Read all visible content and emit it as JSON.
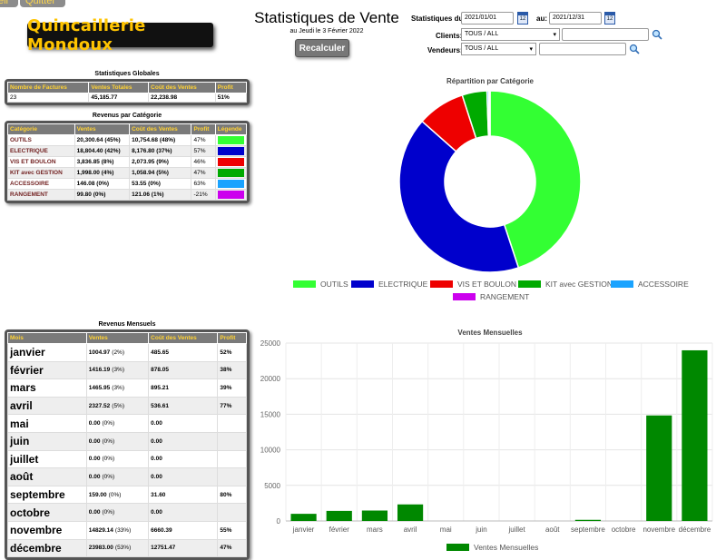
{
  "menu": {
    "tab1": "ell",
    "tab2": "Quitter"
  },
  "logo_text": "Quincaillerie Mondoux",
  "header": {
    "title": "Statistiques de Vente",
    "date_line": "au  Jeudi le 3 Février 2022",
    "recalc_label": "Recalculer"
  },
  "filters": {
    "from_label": "Statistiques du:",
    "from_value": "2021/01/01",
    "to_label": "au:",
    "to_value": "2021/12/31",
    "clients_label": "Clients:",
    "clients_value": "TOUS / ALL",
    "vendeurs_label": "Vendeurs:",
    "vendeurs_value": "TOUS / ALL",
    "cal_glyph": "12"
  },
  "global_stats": {
    "title": "Statistiques Globales",
    "headers": [
      "Nombre de Factures",
      "Ventes Totales",
      "Coût des Ventes",
      "Profit"
    ],
    "row": [
      "23",
      "45,185.77",
      "22,238.98",
      "51%"
    ]
  },
  "category_revenue": {
    "title": "Revenus par Catégorie",
    "headers": [
      "Catégorie",
      "Ventes",
      "Coût des Ventes",
      "Profit",
      "Légende"
    ],
    "rows": [
      {
        "cat": "OUTILS",
        "ventes": "20,300.64 (45%)",
        "cout": "10,754.68 (48%)",
        "profit": "47%",
        "color": "#33ff33"
      },
      {
        "cat": "ELECTRIQUE",
        "ventes": "18,804.40 (42%)",
        "cout": "8,176.80 (37%)",
        "profit": "57%",
        "color": "#0000cc"
      },
      {
        "cat": "VIS ET BOULON",
        "ventes": "3,836.85 (8%)",
        "cout": "2,073.95 (9%)",
        "profit": "46%",
        "color": "#ee0000"
      },
      {
        "cat": "KIT avec GESTION",
        "ventes": "1,998.00 (4%)",
        "cout": "1,058.94 (5%)",
        "profit": "47%",
        "color": "#00aa00"
      },
      {
        "cat": "ACCESSOIRE",
        "ventes": "146.08 (0%)",
        "cout": "53.55 (0%)",
        "profit": "63%",
        "color": "#1aa3ff"
      },
      {
        "cat": "RANGEMENT",
        "ventes": "99.80 (0%)",
        "cout": "121.06 (1%)",
        "profit": "-21%",
        "color": "#cc00ee"
      }
    ]
  },
  "monthly_revenue": {
    "title": "Revenus Mensuels",
    "headers": [
      "Mois",
      "Ventes",
      "Coût des Ventes",
      "Profit"
    ],
    "rows": [
      {
        "mois": "janvier",
        "ventes": "1004.97",
        "pct": "(2%)",
        "cout": "485.65",
        "profit": "52%"
      },
      {
        "mois": "février",
        "ventes": "1416.19",
        "pct": "(3%)",
        "cout": "878.05",
        "profit": "38%"
      },
      {
        "mois": "mars",
        "ventes": "1465.95",
        "pct": "(3%)",
        "cout": "895.21",
        "profit": "39%"
      },
      {
        "mois": "avril",
        "ventes": "2327.52",
        "pct": "(5%)",
        "cout": "536.61",
        "profit": "77%"
      },
      {
        "mois": "mai",
        "ventes": "0.00",
        "pct": "(0%)",
        "cout": "0.00",
        "profit": ""
      },
      {
        "mois": "juin",
        "ventes": "0.00",
        "pct": "(0%)",
        "cout": "0.00",
        "profit": ""
      },
      {
        "mois": "juillet",
        "ventes": "0.00",
        "pct": "(0%)",
        "cout": "0.00",
        "profit": ""
      },
      {
        "mois": "août",
        "ventes": "0.00",
        "pct": "(0%)",
        "cout": "0.00",
        "profit": ""
      },
      {
        "mois": "septembre",
        "ventes": "159.00",
        "pct": "(0%)",
        "cout": "31.60",
        "profit": "80%"
      },
      {
        "mois": "octobre",
        "ventes": "0.00",
        "pct": "(0%)",
        "cout": "0.00",
        "profit": ""
      },
      {
        "mois": "novembre",
        "ventes": "14829.14",
        "pct": "(33%)",
        "cout": "6660.39",
        "profit": "55%"
      },
      {
        "mois": "décembre",
        "ventes": "23983.00",
        "pct": "(53%)",
        "cout": "12751.47",
        "profit": "47%"
      }
    ]
  },
  "chart_data": [
    {
      "type": "pie",
      "title": "Répartition par Catégorie",
      "categories": [
        "OUTILS",
        "ELECTRIQUE",
        "VIS ET BOULON",
        "KIT avec GESTION",
        "ACCESSOIRE",
        "RANGEMENT"
      ],
      "values": [
        20300.64,
        18804.4,
        3836.85,
        1998.0,
        146.08,
        99.8
      ],
      "colors": [
        "#33ff33",
        "#0000cc",
        "#ee0000",
        "#00aa00",
        "#1aa3ff",
        "#cc00ee"
      ],
      "legend": "bottom"
    },
    {
      "type": "bar",
      "title": "Ventes Mensuelles",
      "categories": [
        "janvier",
        "février",
        "mars",
        "avril",
        "mai",
        "juin",
        "juillet",
        "août",
        "septembre",
        "octobre",
        "novembre",
        "décembre"
      ],
      "values": [
        1004.97,
        1416.19,
        1465.95,
        2327.52,
        0,
        0,
        0,
        0,
        159.0,
        0,
        14829.14,
        23983.0
      ],
      "ylim": [
        0,
        25000
      ],
      "yticks": [
        0,
        5000,
        10000,
        15000,
        20000,
        25000
      ],
      "color": "#008800",
      "grid": true,
      "series_name": "Ventes Mensuelles",
      "legend": "bottom"
    }
  ]
}
